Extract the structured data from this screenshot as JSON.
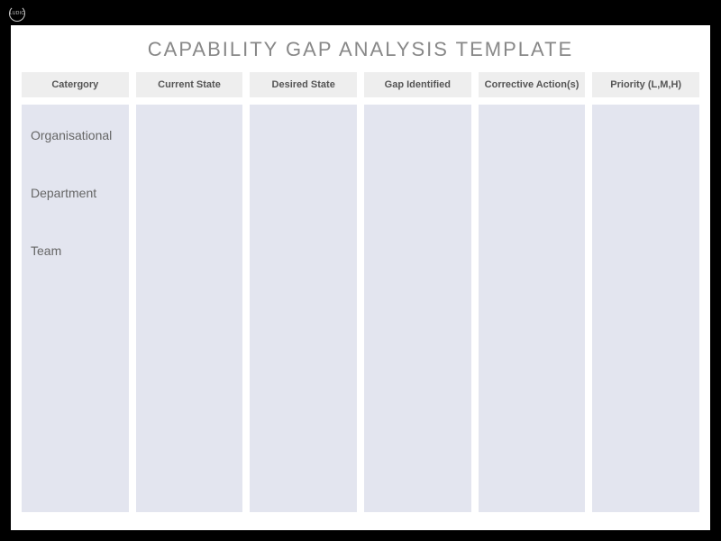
{
  "logo": {
    "text": "LUDIC"
  },
  "title": "CAPABILITY GAP ANALYSIS TEMPLATE",
  "table": {
    "type": "table",
    "background_color": "#ffffff",
    "header_bg_color": "#eeeeee",
    "body_bg_color": "#e3e5ef",
    "header_text_color": "#555555",
    "body_text_color": "#666666",
    "title_color": "#888888",
    "title_fontsize": 22,
    "header_fontsize": 11,
    "body_fontsize": 14,
    "column_gap": 8,
    "columns": [
      {
        "header": "Catergory",
        "rows": [
          "Organisational",
          "Department",
          "Team"
        ]
      },
      {
        "header": "Current State",
        "rows": []
      },
      {
        "header": "Desired State",
        "rows": []
      },
      {
        "header": "Gap Identified",
        "rows": []
      },
      {
        "header": "Corrective Action(s)",
        "rows": []
      },
      {
        "header": "Priority (L,M,H)",
        "rows": []
      }
    ]
  }
}
